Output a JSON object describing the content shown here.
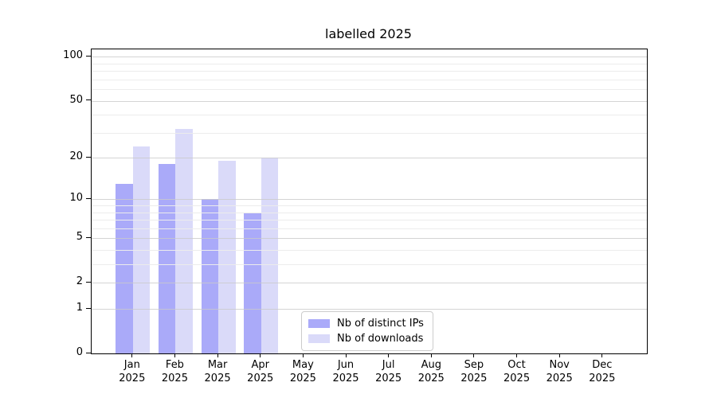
{
  "chart_data": {
    "type": "bar",
    "title": "labelled 2025",
    "categories": [
      {
        "month": "Jan",
        "year": "2025"
      },
      {
        "month": "Feb",
        "year": "2025"
      },
      {
        "month": "Mar",
        "year": "2025"
      },
      {
        "month": "Apr",
        "year": "2025"
      },
      {
        "month": "May",
        "year": "2025"
      },
      {
        "month": "Jun",
        "year": "2025"
      },
      {
        "month": "Jul",
        "year": "2025"
      },
      {
        "month": "Aug",
        "year": "2025"
      },
      {
        "month": "Sep",
        "year": "2025"
      },
      {
        "month": "Oct",
        "year": "2025"
      },
      {
        "month": "Nov",
        "year": "2025"
      },
      {
        "month": "Dec",
        "year": "2025"
      }
    ],
    "series": [
      {
        "name": "Nb of distinct IPs",
        "slug": "distinct-ips",
        "color": "#aaaaf9",
        "values": [
          13,
          18,
          10,
          8,
          null,
          null,
          null,
          null,
          null,
          null,
          null,
          null
        ]
      },
      {
        "name": "Nb of downloads",
        "slug": "downloads",
        "color": "#dadaf9",
        "values": [
          24,
          32,
          19,
          20,
          null,
          null,
          null,
          null,
          null,
          null,
          null,
          null
        ]
      }
    ],
    "y_axis": {
      "scale": "log1p",
      "ylim": [
        0,
        113
      ],
      "major_ticks": [
        {
          "value": 100,
          "label": "100"
        },
        {
          "value": 50,
          "label": "50"
        },
        {
          "value": 20,
          "label": "20"
        },
        {
          "value": 10,
          "label": "10"
        },
        {
          "value": 5,
          "label": "5"
        },
        {
          "value": 2,
          "label": "2"
        },
        {
          "value": 1,
          "label": "1"
        },
        {
          "value": 0,
          "label": "0"
        }
      ],
      "minor_gridline_values": [
        3,
        4,
        6,
        7,
        8,
        9,
        30,
        40,
        60,
        70,
        80,
        90
      ],
      "grid": true
    },
    "legend": {
      "position": "lower-center-inside"
    }
  },
  "colors": {
    "background": "#ffffff",
    "spine": "#000000",
    "text": "#000000",
    "major_grid": "#c9c9c9",
    "minor_grid": "#ececec",
    "bar_distinct_ips": "#aaaaf9",
    "bar_downloads": "#dadaf9"
  }
}
